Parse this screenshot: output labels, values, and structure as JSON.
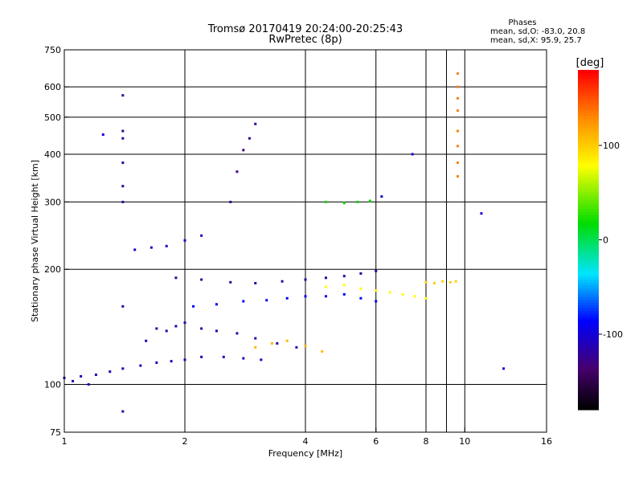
{
  "chart_data": {
    "type": "scatter",
    "title": "Tromsø 20170419 20:24:00-20:25:43",
    "subtitle": "RwPretec (8p)",
    "xlabel": "Frequency [MHz]",
    "ylabel": "Stationary phase Virtual Height [km]",
    "x_scale": "log",
    "y_scale": "log",
    "xlim": [
      1,
      16
    ],
    "ylim": [
      75,
      750
    ],
    "x_ticks": [
      1,
      2,
      4,
      6,
      8,
      10,
      16
    ],
    "x_tick_labels": [
      "1",
      "2",
      "4",
      "6",
      "8",
      "10",
      "16"
    ],
    "x_gridlines": [
      2,
      4,
      6,
      8,
      9,
      10
    ],
    "y_ticks": [
      75,
      100,
      200,
      300,
      400,
      500,
      600,
      750
    ],
    "y_tick_labels": [
      "75",
      "100",
      "200",
      "300",
      "400",
      "500",
      "600",
      "750"
    ],
    "grid": true,
    "stats": {
      "heading": "Phases",
      "line_o": "mean, sd,O: -83.0, 20.8",
      "line_x": "mean, sd,X:  95.9, 25.7"
    },
    "colorbar": {
      "label": "[deg]",
      "range": [
        -180,
        180
      ],
      "ticks": [
        100,
        0,
        -100
      ],
      "tick_labels": [
        "100",
        "0",
        "-100"
      ],
      "colormap": "rainbow (black-purple-blue-cyan-green-yellow-orange-red)"
    },
    "traces": [
      {
        "name": "",
        "x": [
          1.0,
          1.05,
          1.1,
          1.15,
          1.2,
          1.3,
          1.4,
          1.55,
          1.7,
          1.85,
          2.0,
          2.2,
          2.5,
          2.8,
          3.1
        ],
        "y": [
          104,
          102,
          105,
          100,
          106,
          108,
          110,
          112,
          114,
          115,
          116,
          118,
          118,
          117,
          116
        ],
        "phase": -110
      },
      {
        "name": "",
        "x": [
          1.6,
          1.7,
          1.8,
          1.9,
          2.0,
          2.2,
          2.4,
          2.7,
          3.0,
          3.4,
          3.8
        ],
        "y": [
          130,
          140,
          138,
          142,
          145,
          140,
          138,
          136,
          132,
          128,
          125
        ],
        "phase": -115
      },
      {
        "name": "",
        "x": [
          1.5,
          1.65,
          1.8,
          2.0,
          2.2
        ],
        "y": [
          225,
          228,
          230,
          238,
          245
        ],
        "phase": -105
      },
      {
        "name": "",
        "x": [
          1.9,
          2.2,
          2.6,
          3.0,
          3.5,
          4.0,
          4.5,
          5.0,
          5.5,
          6.0
        ],
        "y": [
          190,
          188,
          185,
          184,
          186,
          188,
          190,
          192,
          195,
          198
        ],
        "phase": -120
      },
      {
        "name": "",
        "x": [
          2.1,
          2.4,
          2.8,
          3.2,
          3.6,
          4.0,
          4.5,
          5.0,
          5.5,
          6.0
        ],
        "y": [
          160,
          162,
          165,
          166,
          168,
          170,
          170,
          172,
          168,
          165
        ],
        "phase": -90
      },
      {
        "name": "",
        "x": [
          3.0,
          3.3,
          3.6,
          4.0,
          4.4
        ],
        "y": [
          125,
          128,
          130,
          126,
          122
        ],
        "phase": 110
      },
      {
        "name": "",
        "x": [
          4.5,
          5.0,
          5.5,
          6.0,
          6.5,
          7.0,
          7.5,
          8.0
        ],
        "y": [
          180,
          182,
          178,
          176,
          174,
          172,
          170,
          168
        ],
        "phase": 80
      },
      {
        "name": "",
        "x": [
          8.0,
          8.4,
          8.8,
          9.2,
          9.5
        ],
        "y": [
          185,
          184,
          186,
          185,
          186
        ],
        "phase": 100
      },
      {
        "name": "",
        "x": [
          4.5,
          5.0,
          5.4,
          5.8
        ],
        "y": [
          300,
          298,
          300,
          302
        ],
        "phase": 20
      },
      {
        "name": "",
        "x": [
          9.6,
          9.6,
          9.6,
          9.6,
          9.6,
          9.6,
          9.6,
          9.6
        ],
        "y": [
          350,
          380,
          420,
          460,
          520,
          560,
          600,
          650
        ],
        "phase": 135
      },
      {
        "name": "",
        "x": [
          1.4,
          1.4,
          1.4,
          1.4,
          1.4,
          1.4,
          1.4,
          1.4
        ],
        "y": [
          85,
          160,
          300,
          330,
          380,
          440,
          460,
          570
        ],
        "phase": -120
      },
      {
        "name": "",
        "x": [
          2.6,
          2.7,
          2.8,
          2.9,
          3.0
        ],
        "y": [
          300,
          360,
          410,
          440,
          480
        ],
        "phase": -125
      },
      {
        "name": "",
        "x": [
          1.25,
          6.2,
          7.4,
          11.0,
          12.5
        ],
        "y": [
          450,
          310,
          400,
          280,
          110
        ],
        "phase": -100
      }
    ]
  }
}
